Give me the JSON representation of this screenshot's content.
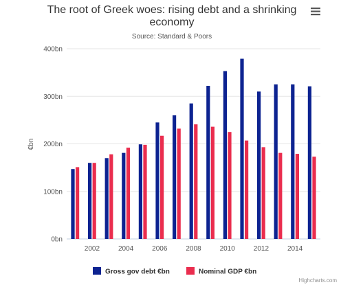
{
  "chart_data": {
    "type": "bar",
    "title": "The root of Greek woes: rising debt and a shrinking economy",
    "title_lines": [
      "The root of Greek woes: rising debt and a shrinking",
      "economy"
    ],
    "subtitle": "Source: Standard & Poors",
    "ylabel": "€bn",
    "ylim": [
      0,
      400
    ],
    "yticks": [
      0,
      100,
      200,
      300,
      400
    ],
    "ytick_labels": [
      "0bn",
      "100bn",
      "200bn",
      "300bn",
      "400bn"
    ],
    "categories": [
      2001,
      2002,
      2003,
      2004,
      2005,
      2006,
      2007,
      2008,
      2009,
      2010,
      2011,
      2012,
      2013,
      2014,
      2015
    ],
    "xtick_labels": [
      "2002",
      "2004",
      "2006",
      "2008",
      "2010",
      "2012",
      "2014"
    ],
    "xtick_values": [
      2002,
      2004,
      2006,
      2008,
      2010,
      2012,
      2014
    ],
    "grid": true,
    "legend_position": "bottom",
    "series": [
      {
        "name": "Gross gov debt €bn",
        "color": "#0d2391",
        "values": [
          147,
          160,
          170,
          181,
          199,
          245,
          260,
          285,
          322,
          353,
          379,
          310,
          325,
          325,
          321
        ]
      },
      {
        "name": "Nominal GDP €bn",
        "color": "#ea2d4e",
        "values": [
          151,
          160,
          178,
          192,
          198,
          217,
          232,
          241,
          236,
          225,
          207,
          193,
          181,
          179,
          173
        ]
      }
    ],
    "credits": "Highcharts.com"
  }
}
